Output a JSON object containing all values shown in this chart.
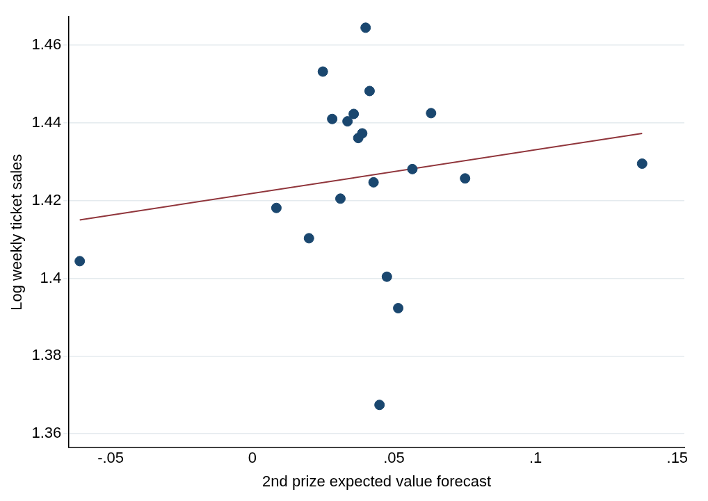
{
  "chart_data": {
    "type": "scatter",
    "xlabel": "2nd prize expected value forecast",
    "ylabel": "Log weekly ticket sales",
    "xlim": [
      -0.0647,
      0.1525
    ],
    "ylim": [
      1.3564,
      1.4673
    ],
    "xticks": [
      {
        "value": -0.05,
        "label": "-.05"
      },
      0,
      {
        "value": 0.05,
        "label": ".05"
      },
      {
        "value": 0.1,
        "label": ".1"
      },
      {
        "value": 0.15,
        "label": ".15"
      }
    ],
    "yticks": [
      1.36,
      1.38,
      1.4,
      1.42,
      1.44,
      1.46
    ],
    "grid": "y",
    "legend": false,
    "marker": "circle",
    "series": [
      {
        "color": "#1a476f",
        "x": [
          -0.0609,
          0.0085,
          0.02,
          0.0249,
          0.0282,
          0.0311,
          0.0336,
          0.0358,
          0.0374,
          0.0388,
          0.04,
          0.0414,
          0.0428,
          0.0449,
          0.0475,
          0.0515,
          0.0565,
          0.0631,
          0.0751,
          0.1376
        ],
        "values": [
          1.4044,
          1.4181,
          1.4103,
          1.4532,
          1.441,
          1.4205,
          1.4404,
          1.4423,
          1.4361,
          1.4373,
          1.4645,
          1.4482,
          1.4247,
          1.3674,
          1.4004,
          1.3923,
          1.4281,
          1.4425,
          1.4257,
          1.4295
        ]
      },
      {
        "type": "line",
        "color": "#90353b",
        "marker": "none",
        "line_style": "solid",
        "x": [
          -0.0609,
          0.1376
        ],
        "values": [
          1.415,
          1.4373
        ]
      }
    ]
  }
}
